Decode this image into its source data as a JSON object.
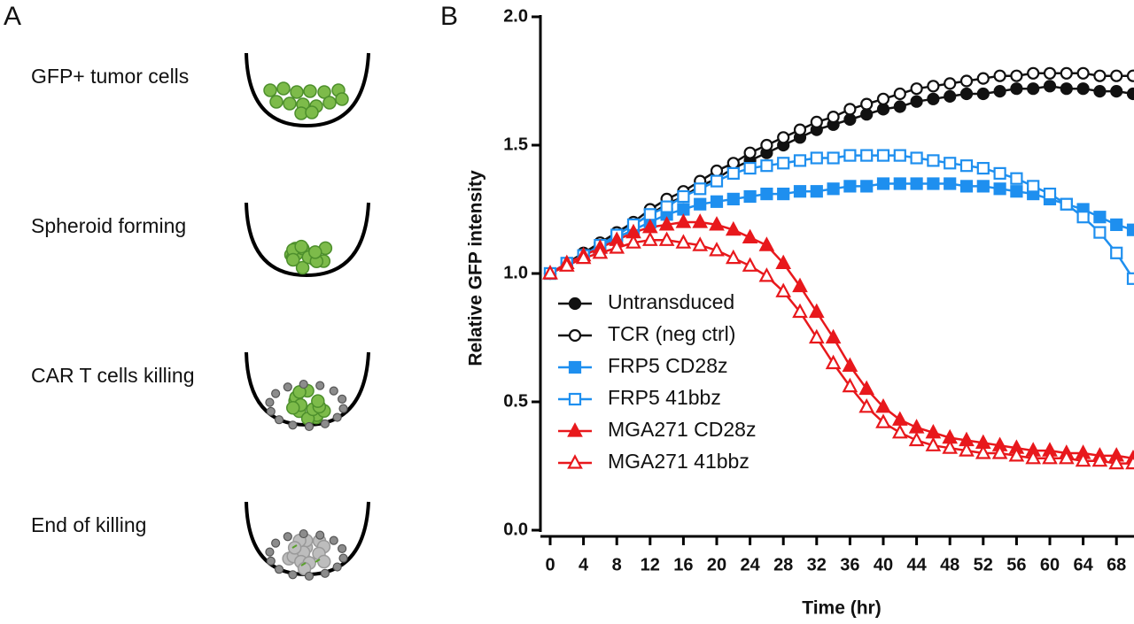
{
  "panel_a": {
    "label": "A",
    "steps": [
      "GFP+ tumor cells",
      "Spheroid  forming",
      "CAR T cells killing",
      "End of killing"
    ]
  },
  "chart_data": {
    "type": "line",
    "panel_label": "B",
    "x_label": "Time (hr)",
    "y_label": "Relative GFP intensity",
    "x": [
      0,
      2,
      4,
      6,
      8,
      10,
      12,
      14,
      16,
      18,
      20,
      22,
      24,
      26,
      28,
      30,
      32,
      34,
      36,
      38,
      40,
      42,
      44,
      46,
      48,
      50,
      52,
      54,
      56,
      58,
      60,
      62,
      64,
      66,
      68,
      70
    ],
    "xlim": [
      0,
      70
    ],
    "xticks": [
      0,
      4,
      8,
      12,
      16,
      20,
      24,
      28,
      32,
      36,
      40,
      44,
      48,
      52,
      56,
      60,
      64,
      68
    ],
    "ylim": [
      0,
      2
    ],
    "yticks": [
      {
        "value": 0,
        "label": "0.0"
      },
      {
        "value": 0.5,
        "label": "0.5"
      },
      {
        "value": 1,
        "label": "1.0"
      },
      {
        "value": 1.5,
        "label": "1.5"
      },
      {
        "value": 2,
        "label": "2.0"
      }
    ],
    "legend": "lower left",
    "series": [
      {
        "name": "Untransduced",
        "color": "#111111",
        "marker": "circle",
        "filled": true,
        "values": [
          1.0,
          1.04,
          1.08,
          1.11,
          1.15,
          1.19,
          1.23,
          1.27,
          1.3,
          1.34,
          1.37,
          1.41,
          1.44,
          1.47,
          1.5,
          1.53,
          1.56,
          1.58,
          1.6,
          1.62,
          1.64,
          1.65,
          1.67,
          1.68,
          1.69,
          1.7,
          1.7,
          1.71,
          1.72,
          1.72,
          1.73,
          1.72,
          1.72,
          1.71,
          1.71,
          1.7
        ]
      },
      {
        "name": "TCR (neg ctrl)",
        "color": "#111111",
        "marker": "circle",
        "filled": false,
        "values": [
          1.0,
          1.04,
          1.08,
          1.12,
          1.16,
          1.2,
          1.25,
          1.29,
          1.32,
          1.36,
          1.4,
          1.43,
          1.47,
          1.5,
          1.53,
          1.56,
          1.59,
          1.61,
          1.64,
          1.66,
          1.68,
          1.7,
          1.72,
          1.73,
          1.74,
          1.75,
          1.76,
          1.77,
          1.77,
          1.78,
          1.78,
          1.78,
          1.78,
          1.77,
          1.77,
          1.77
        ]
      },
      {
        "name": "FRP5 CD28z",
        "color": "#1e8fef",
        "marker": "square",
        "filled": true,
        "values": [
          1.0,
          1.04,
          1.07,
          1.1,
          1.14,
          1.17,
          1.2,
          1.23,
          1.25,
          1.27,
          1.28,
          1.29,
          1.3,
          1.31,
          1.31,
          1.32,
          1.32,
          1.33,
          1.34,
          1.34,
          1.35,
          1.35,
          1.35,
          1.35,
          1.35,
          1.34,
          1.34,
          1.33,
          1.32,
          1.31,
          1.29,
          1.27,
          1.25,
          1.22,
          1.19,
          1.17
        ]
      },
      {
        "name": "FRP5 41bbz",
        "color": "#1e8fef",
        "marker": "square",
        "filled": false,
        "values": [
          1.0,
          1.04,
          1.07,
          1.11,
          1.15,
          1.19,
          1.23,
          1.26,
          1.3,
          1.33,
          1.36,
          1.39,
          1.41,
          1.42,
          1.43,
          1.44,
          1.45,
          1.45,
          1.46,
          1.46,
          1.46,
          1.46,
          1.45,
          1.44,
          1.43,
          1.42,
          1.41,
          1.39,
          1.37,
          1.34,
          1.31,
          1.27,
          1.22,
          1.16,
          1.08,
          0.98
        ]
      },
      {
        "name": "MGA271 CD28z",
        "color": "#e8181c",
        "marker": "triangle",
        "filled": true,
        "values": [
          1.0,
          1.04,
          1.07,
          1.1,
          1.13,
          1.16,
          1.18,
          1.19,
          1.2,
          1.2,
          1.19,
          1.17,
          1.14,
          1.11,
          1.04,
          0.95,
          0.85,
          0.75,
          0.64,
          0.55,
          0.48,
          0.43,
          0.4,
          0.38,
          0.36,
          0.35,
          0.34,
          0.33,
          0.32,
          0.31,
          0.31,
          0.3,
          0.3,
          0.29,
          0.29,
          0.28
        ]
      },
      {
        "name": "MGA271 41bbz",
        "color": "#e8181c",
        "marker": "triangle",
        "filled": false,
        "values": [
          1.0,
          1.03,
          1.06,
          1.08,
          1.1,
          1.12,
          1.13,
          1.13,
          1.12,
          1.11,
          1.09,
          1.06,
          1.03,
          0.99,
          0.93,
          0.85,
          0.75,
          0.65,
          0.56,
          0.48,
          0.42,
          0.38,
          0.35,
          0.33,
          0.32,
          0.31,
          0.3,
          0.3,
          0.29,
          0.28,
          0.28,
          0.28,
          0.27,
          0.27,
          0.26,
          0.26
        ]
      }
    ]
  }
}
